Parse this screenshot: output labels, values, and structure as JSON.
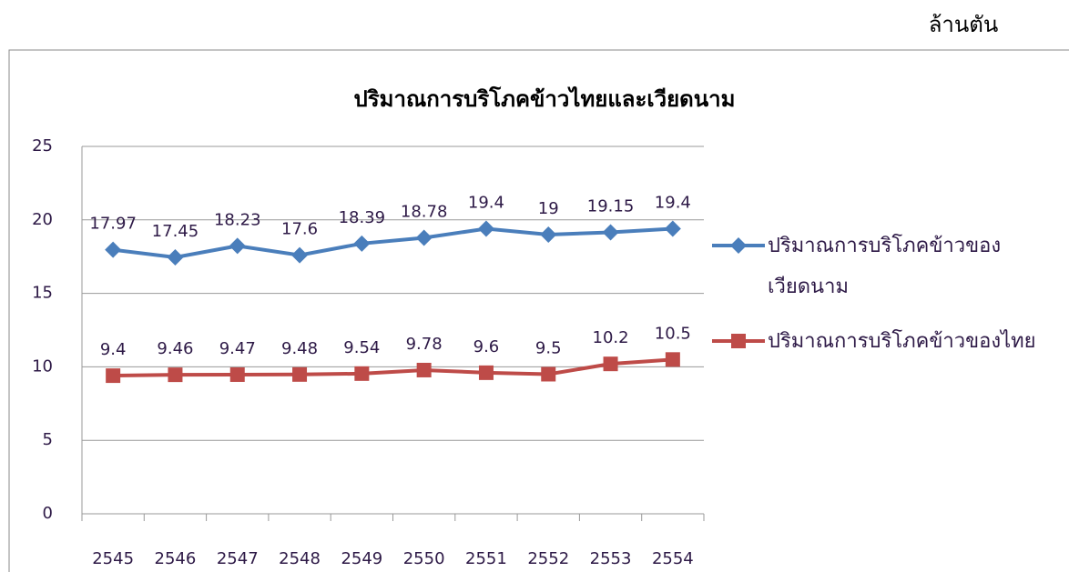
{
  "chart_data": {
    "type": "line",
    "title": "ปริมาณการบริโภคข้าวไทยและเวียดนาม",
    "unit_label": "ล้านตัน",
    "categories": [
      "2545",
      "2546",
      "2547",
      "2548",
      "2549",
      "2550",
      "2551",
      "2552",
      "2553",
      "2554"
    ],
    "series": [
      {
        "name": "ปริมาณการบริโภคข้าวของเวียดนาม",
        "color": "#4a7ebb",
        "marker": "diamond",
        "values": [
          17.97,
          17.45,
          18.23,
          17.6,
          18.39,
          18.78,
          19.4,
          19,
          19.15,
          19.4
        ]
      },
      {
        "name": "ปริมาณการบริโภคข้าวของไทย",
        "color": "#be4b48",
        "marker": "square",
        "values": [
          9.4,
          9.46,
          9.47,
          9.48,
          9.54,
          9.78,
          9.6,
          9.5,
          10.2,
          10.5
        ]
      }
    ],
    "ylim": [
      0,
      25
    ],
    "yticks": [
      0,
      5,
      10,
      15,
      20,
      25
    ],
    "grid": true,
    "legend": "right"
  }
}
